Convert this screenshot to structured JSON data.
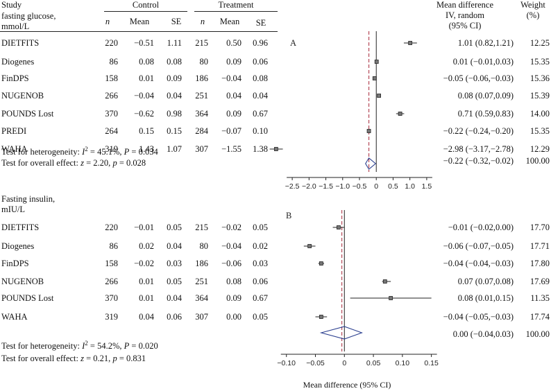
{
  "header": {
    "study": "Study",
    "control": "Control",
    "treatment": "Treatment",
    "md_line1": "Mean difference",
    "md_line2": "IV, random",
    "md_line3": "(95% CI)",
    "weight_line1": "Weight",
    "weight_line2": "(%)",
    "col_n": "n",
    "col_mean": "Mean",
    "col_se": "SE"
  },
  "chart_data": [
    {
      "type": "forest",
      "panel_label": "A",
      "title_line1": "fasting glucose,",
      "title_line2": "mmol/L",
      "xlim": [
        -2.75,
        1.75
      ],
      "xticks": [
        -2.5,
        -2.0,
        -1.5,
        -1.0,
        -0.5,
        0,
        0.5,
        1.0,
        1.5
      ],
      "xtick_labels": [
        "−2.5",
        "−2.0",
        "−1.5",
        "−1.0",
        "−0.5",
        "0",
        "0.5",
        "1.0",
        "1.5"
      ],
      "pooled_line": -0.22,
      "studies": [
        {
          "name": "DIETFITS",
          "c_n": "220",
          "c_mean": "−0.51",
          "c_se": "1.11",
          "t_n": "215",
          "t_mean": "0.50",
          "t_se": "0.96",
          "est": 1.01,
          "lo": 0.82,
          "hi": 1.21,
          "ci": "1.01 (0.82,1.21)",
          "weight": "12.25"
        },
        {
          "name": "Diogenes",
          "c_n": "86",
          "c_mean": "0.08",
          "c_se": "0.08",
          "t_n": "80",
          "t_mean": "0.09",
          "t_se": "0.06",
          "est": 0.01,
          "lo": -0.01,
          "hi": 0.03,
          "ci": "0.01 (−0.01,0.03)",
          "weight": "15.35"
        },
        {
          "name": "FinDPS",
          "c_n": "158",
          "c_mean": "0.01",
          "c_se": "0.09",
          "t_n": "186",
          "t_mean": "−0.04",
          "t_se": "0.08",
          "est": -0.05,
          "lo": -0.06,
          "hi": -0.03,
          "ci": "−0.05 (−0.06,−0.03)",
          "weight": "15.36"
        },
        {
          "name": "NUGENOB",
          "c_n": "266",
          "c_mean": "−0.04",
          "c_se": "0.04",
          "t_n": "251",
          "t_mean": "0.04",
          "t_se": "0.04",
          "est": 0.08,
          "lo": 0.07,
          "hi": 0.09,
          "ci": "0.08 (0.07,0.09)",
          "weight": "15.39"
        },
        {
          "name": "POUNDS Lost",
          "c_n": "370",
          "c_mean": "−0.62",
          "c_se": "0.98",
          "t_n": "364",
          "t_mean": "0.09",
          "t_se": "0.67",
          "est": 0.71,
          "lo": 0.59,
          "hi": 0.83,
          "ci": "0.71 (0.59,0.83)",
          "weight": "14.00"
        },
        {
          "name": "PREDI",
          "c_n": "264",
          "c_mean": "0.15",
          "c_se": "0.15",
          "t_n": "284",
          "t_mean": "−0.07",
          "t_se": "0.10",
          "est": -0.22,
          "lo": -0.24,
          "hi": -0.2,
          "ci": "−0.22 (−0.24,−0.20)",
          "weight": "15.35"
        },
        {
          "name": "WAHA",
          "c_n": "319",
          "c_mean": "1.43",
          "c_se": "1.07",
          "t_n": "307",
          "t_mean": "−1.55",
          "t_se": "1.38",
          "est": -2.98,
          "lo": -3.17,
          "hi": -2.78,
          "ci": "−2.98 (−3.17,−2.78)",
          "weight": "12.29"
        }
      ],
      "overall": {
        "est": -0.22,
        "lo": -0.32,
        "hi": -0.02,
        "ci": "−0.22 (−0.32,−0.02)",
        "weight": "100.00"
      },
      "heterogeneity": {
        "prefix": "Test for heterogeneity: ",
        "i2_label": "I",
        "i2_sup": "2",
        "rest": " = 45.1%, ",
        "p_label": "P",
        "p_value": " = 0.034"
      },
      "overall_effect": {
        "prefix": "Test for overall effect: ",
        "z_label": "z",
        "z_value": " = 2.20, ",
        "p_label": "p",
        "p_value": " = 0.028"
      }
    },
    {
      "type": "forest",
      "panel_label": "B",
      "title_line1": "Fasting insulin,",
      "title_line2": "mIU/L",
      "xlim": [
        -0.12,
        0.16
      ],
      "xticks": [
        -0.1,
        -0.05,
        0,
        0.05,
        0.1,
        0.15
      ],
      "xtick_labels": [
        "−0.10",
        "−0.05",
        "0",
        "0.05",
        "0.10",
        "0.15"
      ],
      "pooled_line": -0.002,
      "studies": [
        {
          "name": "DIETFITS",
          "c_n": "220",
          "c_mean": "−0.01",
          "c_se": "0.05",
          "t_n": "215",
          "t_mean": "−0.02",
          "t_se": "0.05",
          "est": -0.01,
          "lo": -0.02,
          "hi": 0.0,
          "ci": "−0.01 (−0.02,0.00)",
          "weight": "17.70"
        },
        {
          "name": "Diogenes",
          "c_n": "86",
          "c_mean": "0.02",
          "c_se": "0.04",
          "t_n": "80",
          "t_mean": "−0.04",
          "t_se": "0.02",
          "est": -0.06,
          "lo": -0.07,
          "hi": -0.05,
          "ci": "−0.06 (−0.07,−0.05)",
          "weight": "17.71"
        },
        {
          "name": "FinDPS",
          "c_n": "158",
          "c_mean": "−0.02",
          "c_se": "0.03",
          "t_n": "186",
          "t_mean": "−0.06",
          "t_se": "0.03",
          "est": -0.04,
          "lo": -0.045,
          "hi": -0.035,
          "ci": "−0.04 (−0.04,−0.03)",
          "weight": "17.80"
        },
        {
          "name": "NUGENOB",
          "c_n": "266",
          "c_mean": "0.01",
          "c_se": "0.05",
          "t_n": "251",
          "t_mean": "0.08",
          "t_se": "0.06",
          "est": 0.07,
          "lo": 0.065,
          "hi": 0.08,
          "ci": "0.07 (0.07,0.08)",
          "weight": "17.69"
        },
        {
          "name": "POUNDS Lost",
          "c_n": "370",
          "c_mean": "0.01",
          "c_se": "0.04",
          "t_n": "364",
          "t_mean": "0.09",
          "t_se": "0.67",
          "est": 0.08,
          "lo": 0.01,
          "hi": 0.15,
          "ci": "0.08 (0.01,0.15)",
          "weight": "11.35"
        },
        {
          "name": "WAHA",
          "c_n": "319",
          "c_mean": "0.04",
          "c_se": "0.06",
          "t_n": "307",
          "t_mean": "0.00",
          "t_se": "0.05",
          "est": -0.04,
          "lo": -0.05,
          "hi": -0.03,
          "ci": "−0.04 (−0.05,−0.03)",
          "weight": "17.74"
        }
      ],
      "overall": {
        "est": 0.0,
        "lo": -0.04,
        "hi": 0.03,
        "ci": "0.00 (−0.04,0.03)",
        "weight": "100.00"
      },
      "heterogeneity": {
        "prefix": "Test for heterogeneity: ",
        "i2_label": "I",
        "i2_sup": "2",
        "rest": " = 54.2%, ",
        "p_label": "P",
        "p_value": " = 0.020"
      },
      "overall_effect": {
        "prefix": "Test for overall effect: ",
        "z_label": "z",
        "z_value": " = 0.21, ",
        "p_label": "p",
        "p_value": " = 0.831"
      }
    }
  ],
  "x_axis_title": "Mean difference (95% CI)",
  "colors": {
    "diamond": "#2b3f8f",
    "pooled_line": "#b03a4a",
    "ink": "#222222"
  }
}
